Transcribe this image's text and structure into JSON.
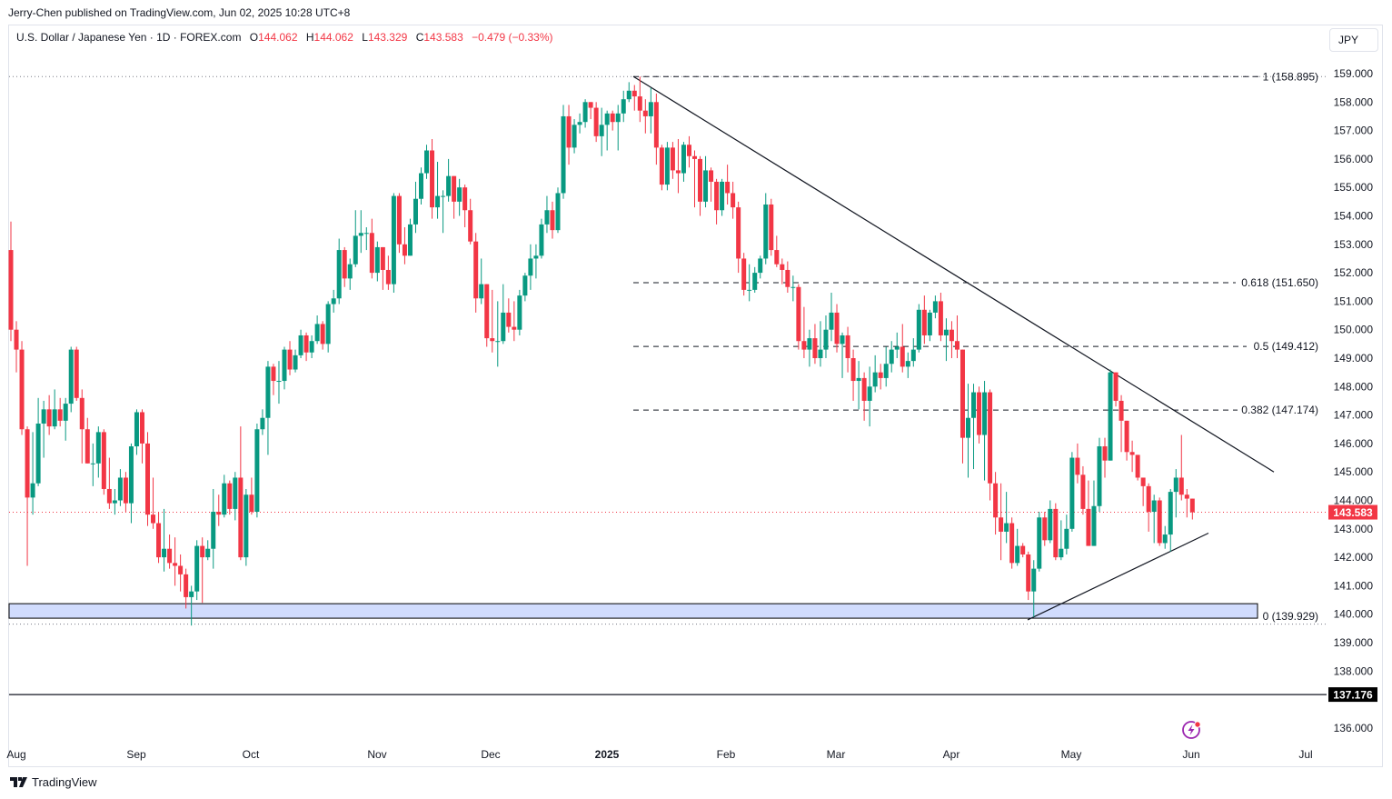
{
  "publisher_line": "Jerry-Chen published on TradingView.com, Jun 02, 2025 10:28 UTC+8",
  "legend": {
    "symbol": "U.S. Dollar / Japanese Yen · 1D · FOREX.com",
    "open_label": "O",
    "open": "144.062",
    "high_label": "H",
    "high": "144.062",
    "low_label": "L",
    "low": "143.329",
    "close_label": "C",
    "close": "143.583",
    "change": "−0.479 (−0.33%)"
  },
  "currency_button": "JPY",
  "branding": "TradingView",
  "colors": {
    "up": "#089981",
    "down": "#f23645",
    "zone_fill": "#d1dcfd",
    "alert_icon": "#9c27b0"
  },
  "chart_data": {
    "type": "candlestick",
    "interval": "1D",
    "y_ticks": [
      "136.000",
      "137.000",
      "138.000",
      "139.000",
      "140.000",
      "141.000",
      "142.000",
      "143.000",
      "144.000",
      "145.000",
      "146.000",
      "147.000",
      "148.000",
      "149.000",
      "150.000",
      "151.000",
      "152.000",
      "153.000",
      "154.000",
      "155.000",
      "156.000",
      "157.000",
      "158.000",
      "159.000"
    ],
    "ylim": [
      135.5,
      160.7
    ],
    "x_ticks": [
      "Aug",
      "Sep",
      "Oct",
      "Nov",
      "Dec",
      "2025",
      "Feb",
      "Mar",
      "Apr",
      "May",
      "Jun",
      "Jul"
    ],
    "last_price": "143.583",
    "horizontal_line": "137.176",
    "fib_levels": [
      {
        "label": "1 (158.895)",
        "price": 158.895
      },
      {
        "label": "0.618 (151.650)",
        "price": 151.65
      },
      {
        "label": "0.5 (149.412)",
        "price": 149.412
      },
      {
        "label": "0.382 (147.174)",
        "price": 147.174
      },
      {
        "label": "0 (139.929)",
        "price": 139.929
      }
    ],
    "support_zone": [
      139.86,
      140.37
    ],
    "trendlines": [
      {
        "from_price": 158.9,
        "to_price": 145.0
      },
      {
        "from_price": 139.8,
        "to_price": 142.85
      }
    ],
    "columns": [
      "open",
      "high",
      "low",
      "close"
    ],
    "ohlc": [
      [
        152.8,
        153.8,
        149.6,
        150.0
      ],
      [
        150.0,
        150.3,
        148.5,
        149.3
      ],
      [
        149.3,
        149.6,
        146.3,
        146.5
      ],
      [
        146.5,
        146.6,
        141.7,
        144.1
      ],
      [
        144.1,
        146.4,
        143.5,
        144.6
      ],
      [
        144.6,
        147.6,
        144.5,
        146.7
      ],
      [
        146.7,
        147.5,
        145.5,
        147.2
      ],
      [
        147.2,
        147.7,
        146.3,
        146.6
      ],
      [
        146.6,
        147.9,
        146.5,
        147.2
      ],
      [
        147.2,
        147.6,
        146.6,
        146.8
      ],
      [
        146.8,
        147.6,
        146.1,
        147.4
      ],
      [
        147.4,
        149.4,
        147.1,
        149.3
      ],
      [
        149.3,
        149.4,
        147.5,
        147.6
      ],
      [
        147.6,
        147.9,
        145.3,
        146.5
      ],
      [
        146.5,
        146.9,
        145.3,
        145.3
      ],
      [
        145.3,
        146.0,
        144.5,
        145.3
      ],
      [
        145.3,
        146.6,
        144.8,
        146.4
      ],
      [
        146.4,
        146.5,
        144.2,
        144.4
      ],
      [
        144.4,
        145.5,
        143.7,
        143.9
      ],
      [
        143.9,
        144.4,
        143.5,
        144.0
      ],
      [
        144.0,
        145.1,
        143.8,
        144.8
      ],
      [
        144.8,
        145.0,
        143.6,
        143.9
      ],
      [
        143.9,
        146.0,
        143.2,
        145.9
      ],
      [
        145.9,
        147.2,
        145.6,
        147.1
      ],
      [
        147.1,
        147.2,
        145.3,
        146.0
      ],
      [
        146.0,
        146.4,
        143.1,
        143.5
      ],
      [
        143.5,
        144.8,
        143.0,
        143.2
      ],
      [
        143.2,
        143.6,
        141.8,
        142.0
      ],
      [
        142.0,
        143.7,
        141.5,
        142.3
      ],
      [
        142.3,
        142.8,
        141.6,
        141.8
      ],
      [
        141.8,
        142.7,
        141.0,
        141.7
      ],
      [
        141.7,
        142.1,
        140.8,
        141.4
      ],
      [
        141.4,
        141.6,
        140.2,
        140.6
      ],
      [
        140.6,
        141.0,
        139.6,
        140.8
      ],
      [
        140.8,
        142.6,
        140.5,
        142.4
      ],
      [
        142.4,
        142.7,
        140.4,
        142.0
      ],
      [
        142.0,
        142.6,
        141.9,
        142.3
      ],
      [
        142.3,
        144.4,
        141.6,
        143.6
      ],
      [
        143.6,
        144.2,
        143.1,
        143.5
      ],
      [
        143.5,
        144.9,
        143.4,
        144.6
      ],
      [
        144.6,
        144.7,
        143.5,
        143.7
      ],
      [
        143.7,
        145.0,
        143.3,
        144.8
      ],
      [
        144.8,
        146.6,
        141.9,
        142.0
      ],
      [
        142.0,
        144.4,
        141.7,
        144.2
      ],
      [
        144.2,
        144.8,
        143.5,
        143.6
      ],
      [
        143.6,
        146.7,
        143.4,
        146.5
      ],
      [
        146.5,
        147.2,
        146.3,
        146.9
      ],
      [
        146.9,
        148.9,
        145.6,
        148.7
      ],
      [
        148.7,
        148.8,
        147.7,
        148.2
      ],
      [
        148.2,
        148.9,
        147.4,
        148.2
      ],
      [
        148.2,
        149.4,
        147.9,
        149.3
      ],
      [
        149.3,
        149.6,
        148.4,
        148.6
      ],
      [
        148.6,
        149.3,
        148.5,
        149.1
      ],
      [
        149.1,
        150.0,
        149.0,
        149.8
      ],
      [
        149.8,
        149.9,
        148.9,
        149.2
      ],
      [
        149.2,
        149.8,
        149.0,
        149.6
      ],
      [
        149.6,
        150.5,
        149.5,
        150.2
      ],
      [
        150.2,
        150.3,
        149.3,
        149.5
      ],
      [
        149.5,
        151.0,
        149.2,
        150.9
      ],
      [
        150.9,
        151.4,
        150.6,
        151.1
      ],
      [
        151.1,
        153.2,
        150.9,
        152.8
      ],
      [
        152.8,
        152.9,
        151.5,
        151.8
      ],
      [
        151.8,
        152.5,
        151.4,
        152.3
      ],
      [
        152.3,
        154.2,
        152.2,
        153.3
      ],
      [
        153.3,
        154.2,
        152.7,
        153.4
      ],
      [
        153.4,
        153.6,
        152.8,
        153.4
      ],
      [
        153.4,
        153.9,
        151.8,
        152.0
      ],
      [
        152.0,
        153.1,
        151.7,
        152.9
      ],
      [
        152.9,
        152.9,
        151.4,
        152.1
      ],
      [
        152.1,
        152.6,
        151.4,
        151.6
      ],
      [
        151.6,
        154.8,
        151.3,
        154.7
      ],
      [
        154.7,
        154.8,
        152.7,
        153.0
      ],
      [
        153.0,
        153.6,
        152.3,
        152.6
      ],
      [
        152.6,
        153.9,
        152.6,
        153.7
      ],
      [
        153.7,
        155.2,
        153.4,
        154.6
      ],
      [
        154.6,
        155.7,
        154.4,
        155.5
      ],
      [
        155.5,
        156.5,
        155.3,
        156.3
      ],
      [
        156.3,
        156.7,
        153.9,
        154.3
      ],
      [
        154.3,
        155.9,
        153.9,
        154.7
      ],
      [
        154.7,
        154.9,
        153.4,
        154.7
      ],
      [
        154.7,
        156.0,
        154.5,
        155.4
      ],
      [
        155.4,
        155.4,
        153.9,
        154.5
      ],
      [
        154.5,
        155.3,
        154.0,
        155.0
      ],
      [
        155.0,
        155.1,
        153.6,
        154.2
      ],
      [
        154.2,
        154.6,
        153.0,
        153.1
      ],
      [
        153.1,
        153.4,
        150.6,
        151.1
      ],
      [
        151.1,
        152.5,
        150.9,
        151.6
      ],
      [
        151.6,
        151.6,
        149.4,
        149.7
      ],
      [
        149.7,
        151.4,
        149.2,
        149.6
      ],
      [
        149.6,
        151.0,
        148.7,
        149.6
      ],
      [
        149.6,
        151.6,
        149.5,
        150.6
      ],
      [
        150.6,
        151.1,
        149.9,
        150.1
      ],
      [
        150.1,
        151.0,
        149.6,
        150.0
      ],
      [
        150.0,
        151.4,
        149.8,
        151.2
      ],
      [
        151.2,
        152.0,
        151.0,
        151.9
      ],
      [
        151.9,
        153.0,
        151.4,
        152.5
      ],
      [
        152.5,
        153.0,
        151.8,
        152.6
      ],
      [
        152.6,
        153.9,
        152.5,
        153.7
      ],
      [
        153.7,
        154.7,
        153.4,
        154.2
      ],
      [
        154.2,
        154.5,
        153.2,
        153.5
      ],
      [
        153.5,
        155.0,
        153.4,
        154.8
      ],
      [
        154.8,
        157.9,
        154.6,
        157.5
      ],
      [
        157.5,
        157.9,
        155.8,
        156.4
      ],
      [
        156.4,
        157.4,
        156.2,
        157.2
      ],
      [
        157.2,
        157.6,
        156.9,
        157.3
      ],
      [
        157.3,
        158.1,
        157.1,
        158.0
      ],
      [
        158.0,
        158.0,
        157.4,
        157.8
      ],
      [
        157.8,
        158.0,
        156.6,
        156.8
      ],
      [
        156.8,
        157.8,
        156.1,
        157.2
      ],
      [
        157.2,
        157.7,
        156.3,
        157.6
      ],
      [
        157.6,
        157.7,
        157.0,
        157.3
      ],
      [
        157.3,
        157.9,
        156.3,
        157.6
      ],
      [
        157.6,
        158.4,
        157.3,
        158.1
      ],
      [
        158.1,
        158.7,
        158.0,
        158.4
      ],
      [
        158.4,
        158.6,
        157.7,
        158.2
      ],
      [
        158.2,
        158.9,
        157.3,
        157.7
      ],
      [
        157.7,
        158.1,
        156.9,
        157.5
      ],
      [
        157.5,
        158.5,
        156.9,
        158.0
      ],
      [
        158.0,
        158.3,
        155.8,
        156.4
      ],
      [
        156.4,
        156.5,
        154.9,
        155.1
      ],
      [
        155.1,
        156.6,
        154.9,
        156.4
      ],
      [
        156.4,
        156.6,
        155.3,
        155.6
      ],
      [
        155.6,
        156.7,
        154.8,
        155.5
      ],
      [
        155.5,
        156.6,
        155.2,
        156.5
      ],
      [
        156.5,
        156.8,
        155.7,
        156.1
      ],
      [
        156.1,
        156.3,
        154.3,
        156.0
      ],
      [
        156.0,
        156.1,
        154.0,
        154.5
      ],
      [
        154.5,
        156.1,
        154.3,
        155.6
      ],
      [
        155.6,
        155.7,
        154.5,
        155.2
      ],
      [
        155.2,
        155.3,
        153.7,
        154.2
      ],
      [
        154.2,
        155.3,
        154.0,
        155.2
      ],
      [
        155.2,
        155.8,
        154.4,
        154.8
      ],
      [
        154.8,
        155.2,
        153.9,
        154.3
      ],
      [
        154.3,
        154.5,
        152.0,
        152.5
      ],
      [
        152.5,
        152.7,
        151.2,
        151.4
      ],
      [
        151.4,
        152.3,
        151.0,
        151.4
      ],
      [
        151.4,
        152.2,
        151.3,
        152.0
      ],
      [
        152.0,
        152.6,
        151.8,
        152.5
      ],
      [
        152.5,
        154.8,
        152.3,
        154.4
      ],
      [
        154.4,
        154.6,
        152.6,
        152.8
      ],
      [
        152.8,
        153.3,
        152.2,
        152.3
      ],
      [
        152.3,
        152.5,
        151.6,
        152.1
      ],
      [
        152.1,
        152.4,
        151.3,
        151.5
      ],
      [
        151.5,
        151.9,
        151.0,
        151.5
      ],
      [
        151.5,
        151.6,
        149.3,
        149.6
      ],
      [
        149.6,
        150.8,
        149.0,
        149.3
      ],
      [
        149.3,
        150.0,
        148.7,
        149.7
      ],
      [
        149.7,
        150.2,
        148.8,
        149.0
      ],
      [
        149.0,
        150.3,
        148.7,
        149.3
      ],
      [
        149.3,
        150.5,
        149.0,
        150.0
      ],
      [
        150.0,
        151.3,
        149.6,
        150.6
      ],
      [
        150.6,
        150.9,
        149.2,
        149.5
      ],
      [
        149.5,
        149.9,
        148.3,
        149.8
      ],
      [
        149.8,
        150.1,
        148.5,
        149.0
      ],
      [
        149.0,
        149.3,
        147.5,
        148.2
      ],
      [
        148.2,
        148.9,
        147.2,
        148.3
      ],
      [
        148.3,
        148.5,
        146.8,
        147.5
      ],
      [
        147.5,
        148.7,
        146.6,
        148.0
      ],
      [
        148.0,
        149.1,
        147.8,
        148.5
      ],
      [
        148.5,
        148.8,
        147.9,
        148.3
      ],
      [
        148.3,
        149.4,
        148.0,
        148.8
      ],
      [
        148.8,
        149.6,
        148.5,
        149.3
      ],
      [
        149.3,
        149.9,
        149.0,
        149.4
      ],
      [
        149.4,
        150.2,
        148.5,
        148.7
      ],
      [
        148.7,
        149.2,
        148.3,
        148.9
      ],
      [
        148.9,
        149.7,
        148.7,
        149.3
      ],
      [
        149.3,
        150.9,
        149.2,
        150.7
      ],
      [
        150.7,
        151.2,
        149.5,
        149.8
      ],
      [
        149.8,
        150.7,
        149.6,
        150.6
      ],
      [
        150.6,
        151.2,
        150.4,
        151.0
      ],
      [
        151.0,
        151.3,
        149.6,
        149.8
      ],
      [
        149.8,
        150.4,
        148.9,
        150.0
      ],
      [
        150.0,
        150.3,
        149.0,
        149.6
      ],
      [
        149.6,
        150.5,
        149.0,
        149.3
      ],
      [
        149.3,
        149.3,
        145.3,
        146.2
      ],
      [
        146.2,
        148.1,
        144.8,
        146.9
      ],
      [
        146.9,
        148.1,
        145.1,
        147.8
      ],
      [
        147.8,
        148.0,
        146.0,
        146.3
      ],
      [
        146.3,
        148.2,
        144.7,
        147.8
      ],
      [
        147.8,
        147.9,
        144.0,
        144.6
      ],
      [
        144.6,
        145.0,
        142.8,
        143.4
      ],
      [
        143.4,
        144.6,
        141.9,
        142.9
      ],
      [
        142.9,
        144.3,
        142.5,
        143.2
      ],
      [
        143.2,
        143.4,
        141.6,
        141.8
      ],
      [
        141.8,
        143.0,
        141.7,
        142.4
      ],
      [
        142.4,
        142.5,
        142.0,
        142.1
      ],
      [
        142.1,
        142.2,
        140.5,
        140.8
      ],
      [
        140.8,
        141.9,
        139.9,
        141.6
      ],
      [
        141.6,
        143.6,
        141.5,
        143.4
      ],
      [
        143.4,
        143.6,
        142.4,
        142.6
      ],
      [
        142.6,
        144.0,
        142.5,
        143.7
      ],
      [
        143.7,
        143.9,
        141.9,
        142.0
      ],
      [
        142.0,
        143.3,
        141.9,
        142.3
      ],
      [
        142.3,
        143.5,
        142.1,
        143.0
      ],
      [
        143.0,
        145.7,
        142.9,
        145.5
      ],
      [
        145.5,
        146.0,
        144.6,
        144.9
      ],
      [
        144.9,
        145.2,
        143.5,
        143.7
      ],
      [
        143.7,
        144.7,
        142.4,
        142.4
      ],
      [
        142.4,
        144.7,
        142.4,
        143.8
      ],
      [
        143.8,
        146.2,
        143.6,
        145.9
      ],
      [
        145.9,
        146.2,
        144.8,
        145.4
      ],
      [
        145.4,
        148.6,
        145.4,
        148.5
      ],
      [
        148.5,
        148.5,
        147.3,
        147.5
      ],
      [
        147.5,
        147.7,
        145.7,
        146.8
      ],
      [
        146.8,
        146.8,
        145.4,
        145.7
      ],
      [
        145.7,
        146.1,
        145.0,
        145.6
      ],
      [
        145.6,
        145.6,
        144.7,
        144.8
      ],
      [
        144.8,
        144.8,
        143.8,
        144.5
      ],
      [
        144.5,
        144.6,
        142.9,
        143.6
      ],
      [
        143.6,
        144.2,
        142.5,
        144.0
      ],
      [
        144.0,
        144.1,
        142.4,
        142.5
      ],
      [
        142.5,
        143.1,
        142.3,
        142.8
      ],
      [
        142.8,
        144.4,
        142.2,
        144.3
      ],
      [
        144.3,
        145.1,
        143.4,
        144.8
      ],
      [
        144.8,
        146.3,
        144.0,
        144.2
      ],
      [
        144.2,
        144.4,
        143.4,
        144.062
      ],
      [
        144.062,
        144.062,
        143.329,
        143.583
      ]
    ]
  }
}
